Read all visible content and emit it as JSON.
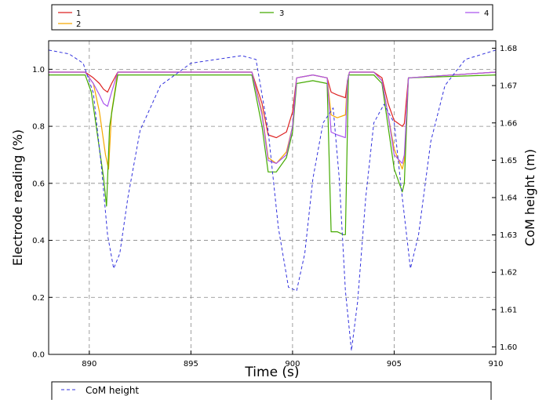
{
  "chart_data": {
    "type": "line",
    "xlabel": "Time (s)",
    "ylabel": "Electrode reading (%)",
    "ylabel_right": "CoM height (m)",
    "xlim": [
      888,
      910
    ],
    "ylim": [
      0.0,
      1.1
    ],
    "ylim_right": [
      1.598,
      1.682
    ],
    "x_ticks": [
      890,
      895,
      900,
      905,
      910
    ],
    "y_ticks": [
      0.0,
      0.2,
      0.4,
      0.6,
      0.8,
      1.0
    ],
    "y_ticks_right": [
      1.6,
      1.61,
      1.62,
      1.63,
      1.64,
      1.65,
      1.66,
      1.67,
      1.68
    ],
    "grid": true,
    "legend_top": [
      "1",
      "2",
      "3",
      "4"
    ],
    "legend_bottom": [
      "CoM height"
    ],
    "colors": {
      "1": "#dd2222",
      "2": "#f5a800",
      "3": "#44aa00",
      "4": "#aa55ee",
      "com": "#3333dd"
    },
    "series": [
      {
        "name": "1",
        "color": "#dd2222",
        "axis": "left",
        "x": [
          888,
          889.8,
          890.2,
          890.5,
          890.7,
          890.9,
          891.1,
          891.4,
          898,
          898.5,
          898.8,
          899.2,
          899.7,
          900,
          900.2,
          901,
          901.7,
          901.9,
          902.2,
          902.6,
          902.7,
          902.8,
          904,
          904.4,
          904.7,
          905,
          905.4,
          905.5,
          905.7,
          910
        ],
        "y": [
          0.99,
          0.99,
          0.97,
          0.95,
          0.93,
          0.92,
          0.95,
          0.99,
          0.99,
          0.88,
          0.77,
          0.76,
          0.78,
          0.85,
          0.97,
          0.98,
          0.97,
          0.92,
          0.91,
          0.9,
          0.96,
          0.99,
          0.99,
          0.97,
          0.88,
          0.82,
          0.8,
          0.81,
          0.97,
          0.99
        ]
      },
      {
        "name": "2",
        "color": "#f5a800",
        "axis": "left",
        "x": [
          888,
          889.8,
          890.2,
          890.5,
          890.8,
          890.95,
          891.1,
          891.4,
          898,
          898.5,
          898.8,
          899.2,
          899.7,
          900,
          900.2,
          901,
          901.7,
          901.9,
          902.2,
          902.6,
          902.7,
          902.8,
          904,
          904.4,
          904.7,
          905,
          905.4,
          905.5,
          905.7,
          910
        ],
        "y": [
          0.99,
          0.99,
          0.95,
          0.85,
          0.7,
          0.65,
          0.85,
          0.99,
          0.99,
          0.85,
          0.69,
          0.67,
          0.71,
          0.8,
          0.97,
          0.98,
          0.97,
          0.84,
          0.83,
          0.84,
          0.96,
          0.99,
          0.99,
          0.96,
          0.84,
          0.72,
          0.65,
          0.68,
          0.97,
          0.99
        ]
      },
      {
        "name": "3",
        "color": "#44aa00",
        "axis": "left",
        "x": [
          888,
          889.8,
          890.1,
          890.4,
          890.7,
          890.85,
          891.0,
          891.4,
          898,
          898.5,
          898.8,
          899.2,
          899.7,
          900,
          900.2,
          901,
          901.7,
          901.9,
          902.2,
          902.5,
          902.6,
          902.75,
          904,
          904.4,
          904.7,
          905,
          905.4,
          905.5,
          905.7,
          910
        ],
        "y": [
          0.98,
          0.98,
          0.92,
          0.77,
          0.62,
          0.52,
          0.8,
          0.98,
          0.98,
          0.8,
          0.64,
          0.64,
          0.69,
          0.78,
          0.95,
          0.96,
          0.95,
          0.43,
          0.43,
          0.42,
          0.42,
          0.98,
          0.98,
          0.95,
          0.8,
          0.65,
          0.57,
          0.6,
          0.97,
          0.98
        ]
      },
      {
        "name": "4",
        "color": "#aa55ee",
        "axis": "left",
        "x": [
          888,
          889.8,
          890.2,
          890.5,
          890.7,
          890.9,
          891.1,
          891.4,
          898,
          898.5,
          898.8,
          899.2,
          899.7,
          900,
          900.2,
          901,
          901.7,
          901.9,
          902.2,
          902.6,
          902.7,
          902.8,
          904,
          904.4,
          904.7,
          905,
          905.4,
          905.5,
          905.7,
          910
        ],
        "y": [
          0.99,
          0.99,
          0.95,
          0.91,
          0.88,
          0.87,
          0.92,
          0.99,
          0.99,
          0.84,
          0.68,
          0.67,
          0.7,
          0.8,
          0.97,
          0.98,
          0.97,
          0.78,
          0.77,
          0.76,
          0.96,
          0.99,
          0.99,
          0.96,
          0.84,
          0.7,
          0.67,
          0.7,
          0.97,
          0.99
        ]
      },
      {
        "name": "CoM height",
        "color": "#3333dd",
        "axis": "right",
        "dashed": true,
        "x": [
          888,
          889,
          889.7,
          890.2,
          890.6,
          890.9,
          891.2,
          891.5,
          891.9,
          892.5,
          893.5,
          895,
          897.5,
          898.2,
          898.8,
          899.3,
          899.8,
          900.2,
          900.6,
          901,
          901.5,
          902,
          902.3,
          902.6,
          902.9,
          903.2,
          903.6,
          904,
          904.5,
          905,
          905.4,
          905.8,
          906.2,
          906.8,
          907.5,
          908.5,
          910
        ],
        "y": [
          1.6795,
          1.6785,
          1.676,
          1.668,
          1.648,
          1.63,
          1.621,
          1.625,
          1.64,
          1.658,
          1.67,
          1.676,
          1.678,
          1.677,
          1.658,
          1.632,
          1.616,
          1.615,
          1.625,
          1.645,
          1.66,
          1.664,
          1.645,
          1.615,
          1.599,
          1.612,
          1.64,
          1.66,
          1.665,
          1.66,
          1.64,
          1.621,
          1.63,
          1.655,
          1.67,
          1.677,
          1.6795
        ]
      }
    ]
  }
}
